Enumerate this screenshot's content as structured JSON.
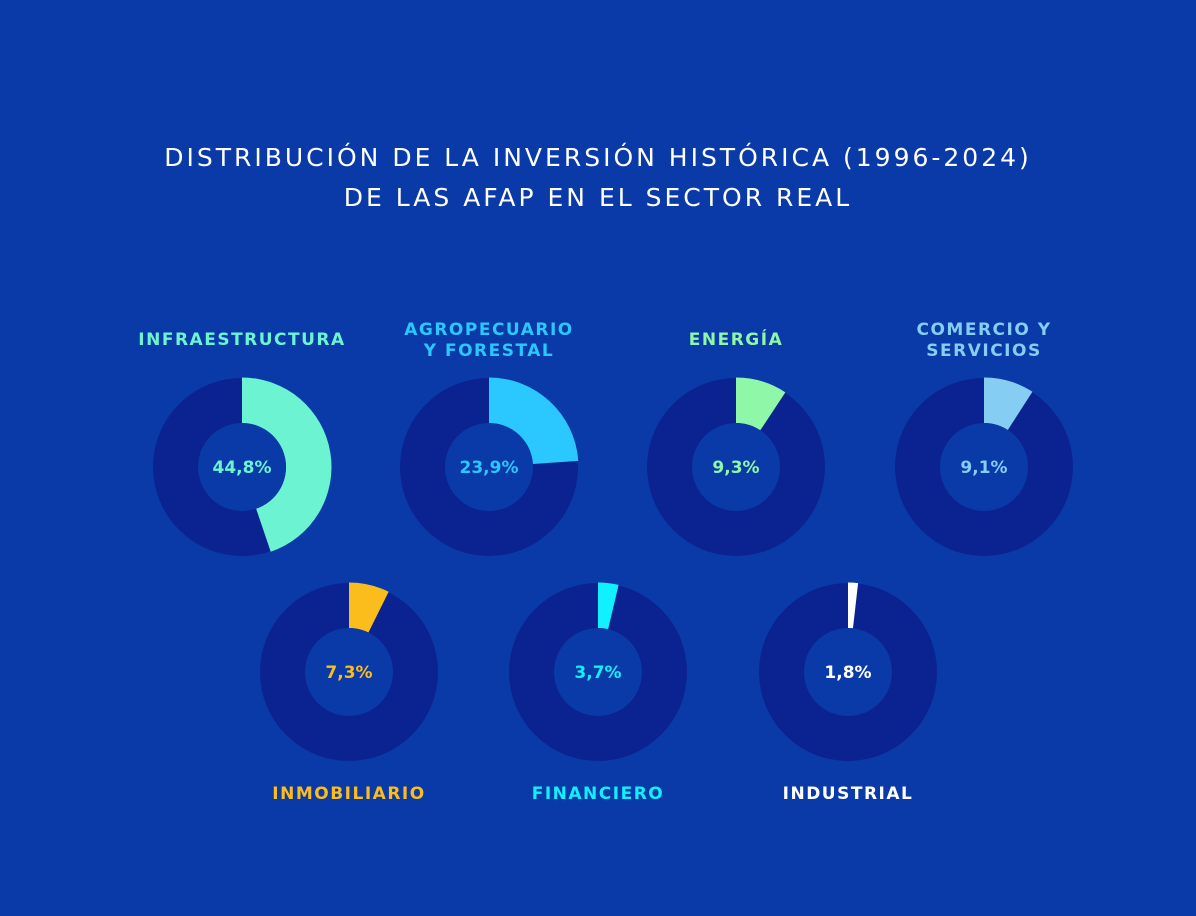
{
  "title_line1": "DISTRIBUCIÓN DE LA INVERSIÓN HISTÓRICA (1996-2024)",
  "title_line2": "DE LAS AFAP EN EL SECTOR REAL",
  "colors": {
    "background": "#0a3aa8",
    "ring_track": "#0b2390",
    "inner_circle": "#0a3aa8"
  },
  "chart_data": {
    "type": "pie",
    "subtype": "donut",
    "unit": "%",
    "slices": [
      {
        "label": [
          "INFRAESTRUCTURA"
        ],
        "value": 44.8,
        "value_label": "44,8%",
        "color": "#6cf4d2",
        "label_position": "top"
      },
      {
        "label": [
          "AGROPECUARIO",
          "Y FORESTAL"
        ],
        "value": 23.9,
        "value_label": "23,9%",
        "color": "#2ac8ff",
        "label_position": "top"
      },
      {
        "label": [
          "ENERGÍA"
        ],
        "value": 9.3,
        "value_label": "9,3%",
        "color": "#8ef7a8",
        "label_position": "top"
      },
      {
        "label": [
          "COMERCIO Y",
          "SERVICIOS"
        ],
        "value": 9.1,
        "value_label": "9,1%",
        "color": "#86cdf3",
        "label_position": "top"
      },
      {
        "label": [
          "INMOBILIARIO"
        ],
        "value": 7.3,
        "value_label": "7,3%",
        "color": "#fbbd1c",
        "label_position": "bottom"
      },
      {
        "label": [
          "FINANCIERO"
        ],
        "value": 3.7,
        "value_label": "3,7%",
        "color": "#10f0ff",
        "label_position": "bottom"
      },
      {
        "label": [
          "INDUSTRIAL"
        ],
        "value": 1.8,
        "value_label": "1,8%",
        "color": "#ffffff",
        "label_position": "bottom"
      }
    ]
  }
}
